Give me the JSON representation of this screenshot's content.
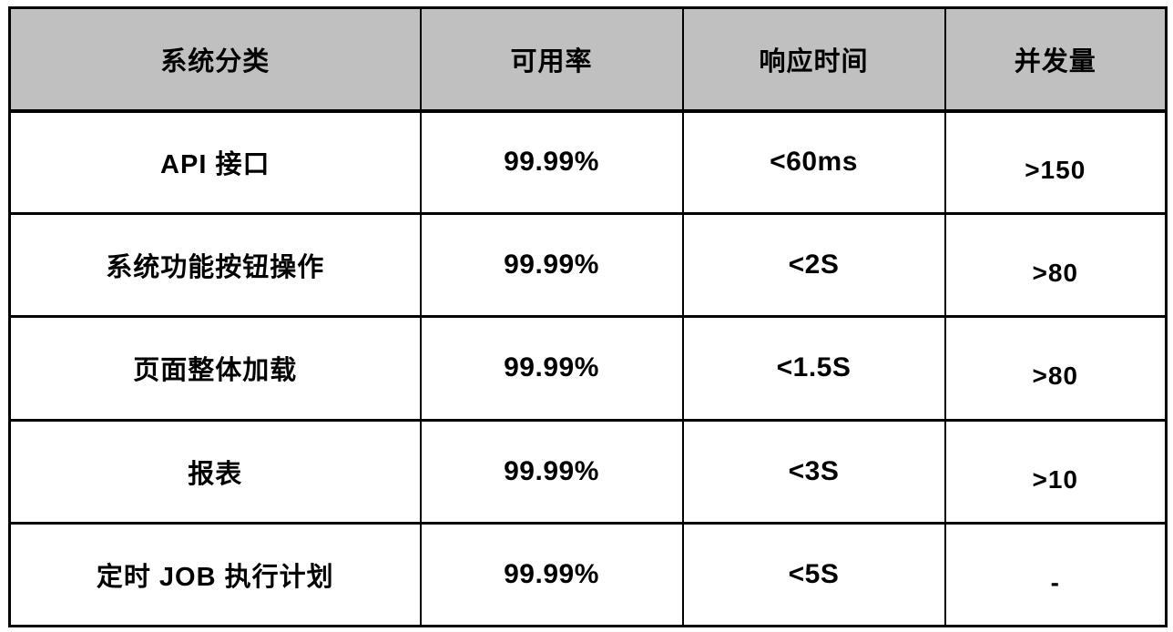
{
  "table": {
    "columns": [
      "系统分类",
      "可用率",
      "响应时间",
      "并发量"
    ],
    "column_ids": [
      "system-category",
      "availability",
      "response-time",
      "concurrency"
    ],
    "rows": [
      [
        "API 接口",
        "99.99%",
        "<60ms",
        ">150"
      ],
      [
        "系统功能按钮操作",
        "99.99%",
        "<2S",
        ">80"
      ],
      [
        "页面整体加载",
        "99.99%",
        "<1.5S",
        ">80"
      ],
      [
        "报表",
        "99.99%",
        "<3S",
        ">10"
      ],
      [
        "定时 JOB 执行计划",
        "99.99%",
        "<5S",
        "-"
      ]
    ],
    "colors": {
      "header_bg": "#c0c0c0",
      "border": "#000000",
      "body_bg": "#ffffff",
      "text": "#000000"
    }
  }
}
